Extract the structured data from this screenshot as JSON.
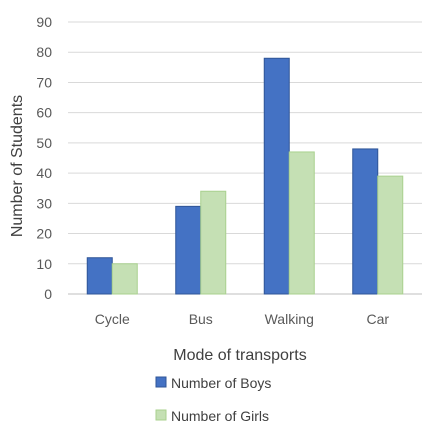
{
  "chart_data": {
    "type": "bar",
    "title": "",
    "xlabel": "Mode of transports",
    "ylabel": "Number of Students",
    "categories": [
      "Cycle",
      "Bus",
      "Walking",
      "Car"
    ],
    "series": [
      {
        "name": "Number of Boys",
        "values": [
          12,
          29,
          78,
          48
        ],
        "color": "#4472C4"
      },
      {
        "name": "Number of Girls",
        "values": [
          10,
          34,
          47,
          39
        ],
        "color": "#C5E0B4"
      }
    ],
    "ylim": [
      0,
      90
    ],
    "yticks": [
      "0",
      "10",
      "20",
      "30",
      "40",
      "50",
      "60",
      "70",
      "80",
      "90"
    ],
    "grid": true,
    "legend_position": "bottom"
  }
}
